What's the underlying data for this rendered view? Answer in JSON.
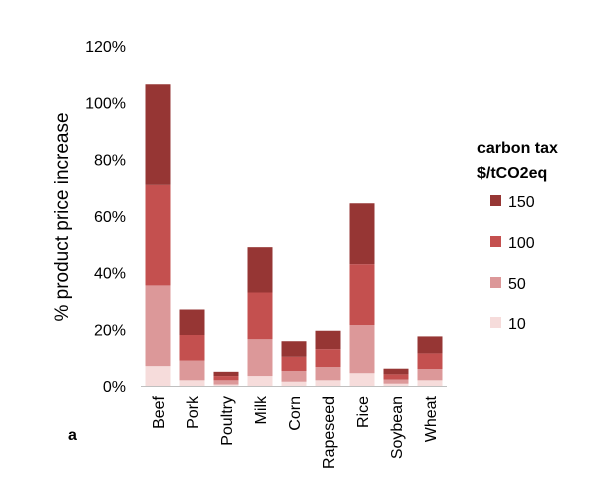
{
  "panel_label": "a",
  "chart_data": {
    "type": "bar",
    "stacked": true,
    "title": "",
    "xlabel": "",
    "ylabel": "% product price increase",
    "ylim": [
      0,
      120
    ],
    "y_tick_labels": [
      "0%",
      "20%",
      "40%",
      "60%",
      "80%",
      "100%",
      "120%"
    ],
    "y_ticks": [
      0,
      20,
      40,
      60,
      80,
      100,
      120
    ],
    "grid": false,
    "legend_placement": "right",
    "legend_title": [
      "carbon tax",
      "$/tCO2eq"
    ],
    "categories": [
      "Beef",
      "Pork",
      "Poultry",
      "Milk",
      "Corn",
      "Rapeseed",
      "Rice",
      "Soybean",
      "Wheat"
    ],
    "series": [
      {
        "name": "10",
        "color": "#f6dcdb",
        "values": [
          7.0,
          2.0,
          0.5,
          3.5,
          1.5,
          2.0,
          4.5,
          0.8,
          2.0
        ]
      },
      {
        "name": "50",
        "color": "#dc9899",
        "values": [
          28.5,
          7.0,
          1.5,
          13.0,
          3.8,
          4.7,
          17.0,
          1.5,
          4.0
        ]
      },
      {
        "name": "100",
        "color": "#c4504f",
        "values": [
          35.5,
          9.0,
          1.5,
          16.5,
          5.0,
          6.3,
          21.5,
          1.8,
          5.5
        ]
      },
      {
        "name": "150",
        "color": "#963634",
        "values": [
          35.5,
          9.0,
          1.5,
          16.0,
          5.5,
          6.5,
          21.5,
          2.0,
          6.0
        ]
      }
    ]
  }
}
